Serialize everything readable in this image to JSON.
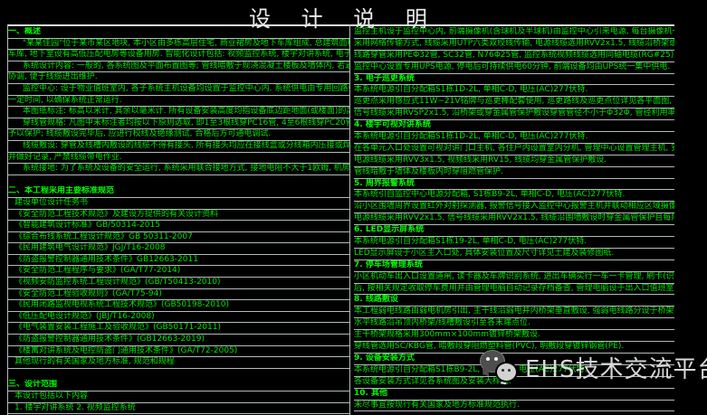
{
  "title": "设 计 说 明",
  "watermark": {
    "logo": "wechat-icon",
    "text": "EHS技术交流平台"
  },
  "colors": {
    "background": "#000000",
    "text_green": "#00e400",
    "text_green_bright": "#00fa00",
    "rule_line_gray": "#b4babc",
    "title_rule_white": "#dfe3e4",
    "title_white": "#ececec",
    "watermark_gray": "#d8d8d8"
  },
  "columns": {
    "left": {
      "rows": [
        {
          "type": "header",
          "text": "一、概述"
        },
        {
          "type": "para",
          "text": "\"某某佳园\"位于某市某区地块, 本小区由多栋高层住宅, 商业裙房及地下车库组成, 总建筑面积约135.4万平方米, 建筑高度(35.4米)以内"
        },
        {
          "type": "cont",
          "text": "车库, 地下室设有高低压配电房等设备用房. 智能化设计包括: 视频监控系统, 楼宇对讲系统, 电子巡更系统, 周界报警及停车场管理系统等."
        },
        {
          "type": "para",
          "text": "系统设计内容: 一般的, 各系统图及平面布置图等; 管线暗敷于现浇混凝土楼板及墙体内, 若遇吊顶时沿吊顶内敷设, 线槽安装时应与结构专业"
        },
        {
          "type": "cont",
          "text": "协调, 便于线缆进出维护."
        },
        {
          "type": "para",
          "text": "监控中心: 设于物业值班室内, 各子系统主机设备均设置于监控中心内. 系统供电由专用回路引来并配置不间断电源, 停电时, 系统可持续工作"
        },
        {
          "type": "cont",
          "text": "一定时间, 以确保系统正常运行."
        },
        {
          "type": "para",
          "text": "本图纸标注: 标高以米计, 其余以毫米计. 所有设备安装高度均指设备底边距地面(或楼面)的高度, 其余详见各系统说明及安装大样图."
        },
        {
          "type": "para",
          "text": "穿线管规格: 凡图中未标注者均按以下原则选取, 即1至3根线穿PC16管, 4至6根线穿PC20管, 管径利用率不够时按规格选大一级使用, 明敷线管"
        },
        {
          "type": "cont",
          "text": "予以保护; 线缆敷设完毕后, 应进行校线及绝缘测试, 合格后方可通电调试."
        },
        {
          "type": "para",
          "text": "线缆敷设: 穿管及线槽内敷设的线缆不得有接头, 所有接头均应在接线盒或分线箱内压接或焊接并做好标识, 隐蔽工程应经验收合格后方可封闭"
        },
        {
          "type": "cont",
          "text": "并做好记录, 严禁线缆带电作业."
        },
        {
          "type": "para",
          "text": "系统接地: 为了系统及设备的安全运行, 系统采用联合接地方式, 接地电阻不大于1欧姆, 机房内设置等电位联结端子箱."
        },
        {
          "type": "blank",
          "text": ""
        },
        {
          "type": "header",
          "text": "二、本工程采用主要标准规范"
        },
        {
          "type": "item",
          "text": "建设单位设计任务书"
        },
        {
          "type": "item",
          "text": "《安全防范工程技术规范》及建设方提供的有关设计资料"
        },
        {
          "type": "item",
          "text": "《智能建筑设计标准》GB/50314-2015"
        },
        {
          "type": "item",
          "text": "《综合布线系统工程设计规范》GB 50311-2007"
        },
        {
          "type": "item",
          "text": "《民用建筑电气设计规范》JGJ/T16-2008"
        },
        {
          "type": "item",
          "text": "《防盗报警控制器通用技术条件》GB12663-2011"
        },
        {
          "type": "item",
          "text": "《安全防范工程程序与要求》(GA/T77-2014)"
        },
        {
          "type": "item",
          "text": "《视频安防监控系统工程设计规范》(GB/T50413-2010)"
        },
        {
          "type": "item",
          "text": "《安全防范工程验收规则》(GA/T75-94)"
        },
        {
          "type": "item",
          "text": "《民用闭路监视电视系统工程技术规范》(GB50198-2010)"
        },
        {
          "type": "item",
          "text": "《低压配电设计规范》(JBJ/T16-2008)"
        },
        {
          "type": "item",
          "text": "《电气装置安装工程施工及验收规范》(GB50171-2011)"
        },
        {
          "type": "item",
          "text": "《防盗报警控制器通用技术条件》(GB12663-2019)"
        },
        {
          "type": "item",
          "text": "《楼寓对讲系统及电控防盗门通用技术条件》(GA/T72-2005)"
        },
        {
          "type": "item",
          "text": "其他现行的有关国家及地方标准, 规范和规程"
        },
        {
          "type": "blank",
          "text": ""
        },
        {
          "type": "header",
          "text": "三、设计范围"
        },
        {
          "type": "item",
          "text": "本设计包括以下内容"
        },
        {
          "type": "item",
          "text": "1. 楼宇对讲系统      2. 视频监控系统"
        }
      ]
    },
    "right": {
      "rows": [
        {
          "type": "cont",
          "text": "监控主机设于监控中心内, 前端摄像机(含球机及半球机)由监控中心引来电源, 每台摄像机一路(具体详见系统图), 视频线穿金属管保护敷设, 线缆选用"
        },
        {
          "type": "cont",
          "text": "采用网络传输方式, 线缆采用UTP六类双绞线传输, 电源线缆选用RVV2x1.5, 线缆沿桥架或穿金属管保护敷设至各监控点, 穿管管径不足时予以调整"
        },
        {
          "type": "cont",
          "text": "线路穿管采用PEΦ32管, SC32管, N76Φ25管, 监控系统视频线缆选用同轴电缆(RG#25)."
        },
        {
          "type": "cont",
          "text": "监控中心设置专用UPS电源, 停电后可持续供电60分钟, 前端设备均由UPS统一集中供电."
        },
        {
          "type": "header",
          "text": "3. 电子巡更系统"
        },
        {
          "type": "cont",
          "text": "本系统电源引自分配箱S1栋1D-2L, 单相C-D, 电压(AC)277伏特."
        },
        {
          "type": "cont",
          "text": "巡更点采用感应式11W~21V铭牌与巡更棒配套使用, 巡更路线及巡更点位详见各平面图, 巡更棒配置详见系统图."
        },
        {
          "type": "cont",
          "text": "信号线缆采用RVSP2x1.5, 沿桥架或穿金属管保护敷设穿管管径不小于Φ32Φ, 管径利用率不够时按规格选大一级."
        },
        {
          "type": "header",
          "text": "4. 楼宇可视对讲系统"
        },
        {
          "type": "cont",
          "text": "本系统电源引自分配箱S1栋1D-2L, 单相C-D, 电压(AC)277伏特."
        },
        {
          "type": "cont",
          "text": "在各单元入口处设置可视对讲门口主机, 各住户内设置室内分机, 管理中心设置管理主机, 安装详见各层平面布置图."
        },
        {
          "type": "cont",
          "text": "电源线缆采用RVV3x1.5, 视频线采用RV15, 线缆均穿金属管保护敷设."
        },
        {
          "type": "cont",
          "text": "管线暗敷于墙体及楼板内时穿阻燃管保护."
        },
        {
          "type": "header",
          "text": "5. 周界报警系统"
        },
        {
          "type": "cont",
          "text": "本系统引自监控中心电源分配箱, S1栋B9-2L, 单相C-D, 电压(AC)277伏特."
        },
        {
          "type": "cont",
          "text": "沿小区围墙周界设置红外对射探测器, 报警信号接入监控中心报警主机并联动相应区域摄像机, 设置一台报警主机及显示屏等."
        },
        {
          "type": "cont",
          "text": "电源线缆采用RVV2x1.5, 信号线缆采用RVV2x1.5, 线缆沿围墙敷设时穿金属管保护且每隔45(m)设置一处接线盒."
        },
        {
          "type": "header",
          "text": "6. LED显示屏系统"
        },
        {
          "type": "cont",
          "text": "本系统电源引自分配箱S1栋19-2L, 单相C-D, 电压(AC)277伏特."
        },
        {
          "type": "cont",
          "text": "LED显示屏设于小区主入口处, 具体安装位置及尺寸详见土建及装修图纸."
        },
        {
          "type": "header",
          "text": "7. 停车场管理系统"
        },
        {
          "type": "cont",
          "text": "小区机动车出入口设置道闸, 读卡器及车牌识别系统, 进出车辆实行一车一卡管理, 刷卡(识别)后道闸自动开启, 外来车辆取卡进场"
        },
        {
          "type": "cont",
          "text": "后, 按相关规定收取停车费用并由管理电脑自动记录存档备查, 管理电脑设于出入口值班室内."
        },
        {
          "type": "header",
          "text": "8. 线路敷设"
        },
        {
          "type": "cont",
          "text": "本工程弱电线路由弱电机房引出, 主干线沿弱电井内桥架垂直敷设, 强弱电线路分设于桥架两侧(具体详见各系统图)."
        },
        {
          "type": "cont",
          "text": "水平线路沿吊顶内桥架/线槽敷设引至各末端点位."
        },
        {
          "type": "cont",
          "text": "主干桥架规格采用300mm×100mm镀锌桥架敷设."
        },
        {
          "type": "cont",
          "text": "穿线管选用SC/KBG管, 暗敷段穿阻燃塑料管(PVC), 明敷段穿镀锌钢管(PE)."
        },
        {
          "type": "header",
          "text": "9. 设备安装方式"
        },
        {
          "type": "cont",
          "text": "本系统电源引自分配箱S1栋B9-2L, 单相C-D, 电压(AC)277伏特."
        },
        {
          "type": "cont",
          "text": "各设备安装方式详见各系统图及安装大样图."
        },
        {
          "type": "header",
          "text": "10. 其他"
        },
        {
          "type": "cont",
          "text": "未尽事宜按现行有关国家及地方标准规范执行."
        }
      ]
    }
  }
}
